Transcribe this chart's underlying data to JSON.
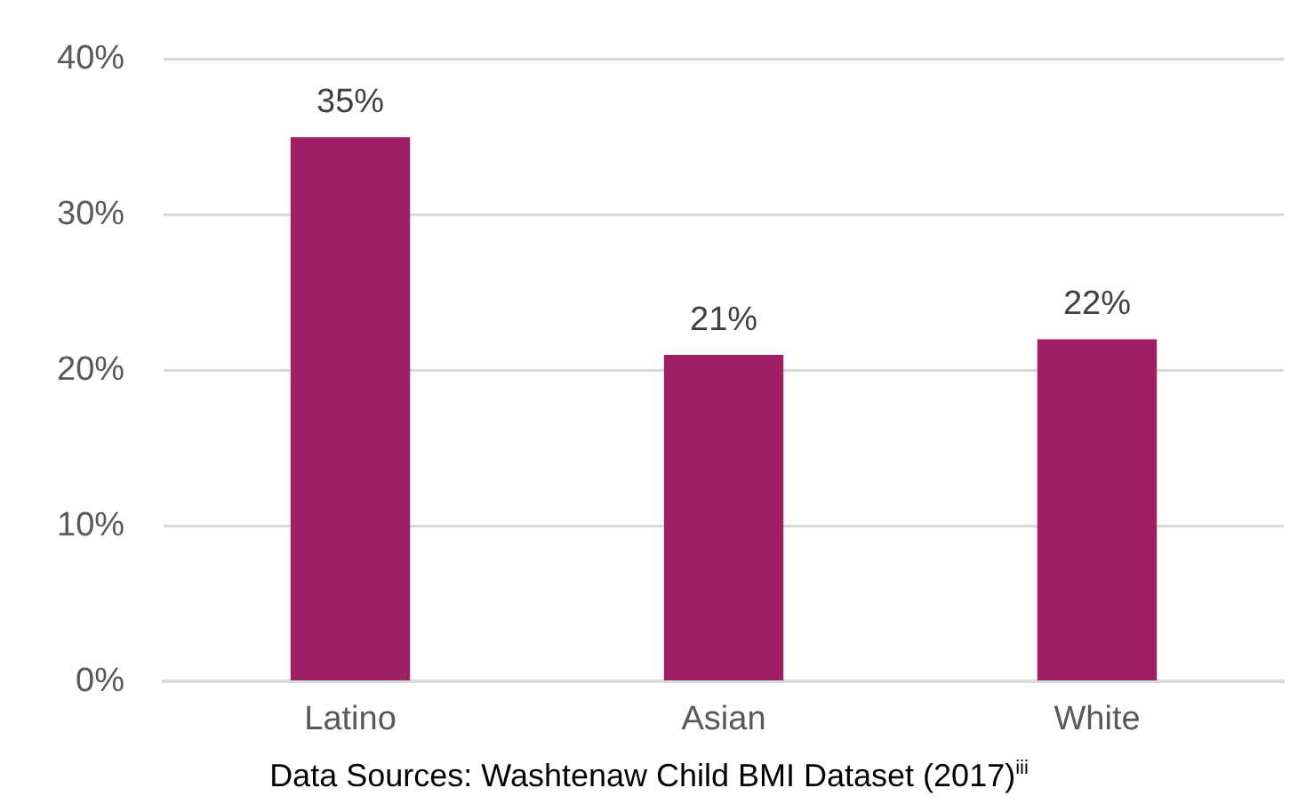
{
  "chart_data": {
    "type": "bar",
    "categories": [
      "Latino",
      "Asian",
      "White"
    ],
    "values": [
      35,
      21,
      22
    ],
    "color": "#9e1f63",
    "ylim": [
      0,
      40
    ],
    "yticks": [
      {
        "value": 0,
        "label": "0%"
      },
      {
        "value": 10,
        "label": "10%"
      },
      {
        "value": 20,
        "label": "20%"
      },
      {
        "value": 30,
        "label": "30%"
      },
      {
        "value": 40,
        "label": "40%"
      }
    ],
    "grid": "y",
    "data_labels": true,
    "value_labels": [
      "35%",
      "21%",
      "22%"
    ],
    "annotations": [
      "Data Sources: Washtenaw Child BMI Dataset (2017)$^{iii}$"
    ]
  }
}
